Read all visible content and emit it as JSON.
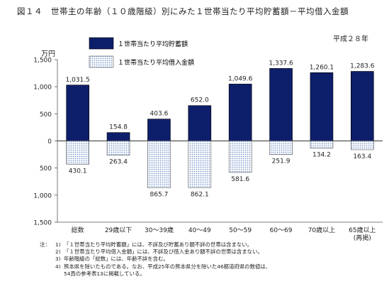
{
  "title": "図１４　世帯主の年齢（１０歳階級）別にみた１世帯当たり平均貯蓄額－平均借入金額",
  "year_label": "平成２８年",
  "unit_label": "万円",
  "chart_data": {
    "type": "bar",
    "categories": [
      "総数",
      "29歳以下",
      "30～39歳",
      "40～49",
      "50～59",
      "60～69",
      "70歳以上",
      "65歳以上"
    ],
    "category_sublabels": [
      "",
      "",
      "",
      "",
      "",
      "",
      "",
      "(再掲)"
    ],
    "series": [
      {
        "name": "１世帯当たり平均貯蓄額",
        "values": [
          1031.5,
          154.8,
          403.6,
          652.0,
          1049.6,
          1337.6,
          1260.1,
          1283.6
        ],
        "direction": "up",
        "color": "#0d1e6a"
      },
      {
        "name": "１世帯当たり平均借入金額",
        "values": [
          430.1,
          263.4,
          865.7,
          862.1,
          581.6,
          251.9,
          134.2,
          163.4
        ],
        "direction": "down",
        "color": "#c6d8ef"
      }
    ],
    "value_labels_up": [
      "1,031.5",
      "154.8",
      "403.6",
      "652.0",
      "1,049.6",
      "1,337.6",
      "1,260.1",
      "1,283.6"
    ],
    "value_labels_down": [
      "430.1",
      "263.4",
      "865.7",
      "862.1",
      "581.6",
      "251.9",
      "134.2",
      "163.4"
    ],
    "y_ticks": [
      1500,
      1000,
      500,
      0,
      500,
      1000,
      1500
    ],
    "y_tick_labels": [
      "1,500",
      "1,000",
      "500",
      "0",
      "500",
      "1,000",
      "1,500"
    ],
    "ylim": [
      -1500,
      1500
    ],
    "legend_position": "top-left"
  },
  "notes": {
    "lead": "注：",
    "items": [
      {
        "num": "1)",
        "text": "「１世帯当たり平均貯蓄額」には、不詳及び貯蓄あり額不詳の世帯は含まない。"
      },
      {
        "num": "2)",
        "text": "「１世帯当たり平均借入金額」には、不詳及び借入金あり額不詳の世帯は含まない。"
      },
      {
        "num": "3)",
        "text": "年齢階級の「総数」には、年齢不詳を含む。"
      },
      {
        "num": "4)",
        "text": "熊本県を除いたものである。なお、平成25年の熊本県分を除いた46都道府県の数値は、"
      },
      {
        "num": "",
        "text": "54頁の参考表13に掲載している。"
      }
    ]
  }
}
